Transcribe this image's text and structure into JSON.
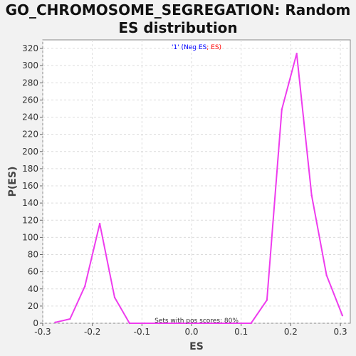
{
  "chart_data": {
    "type": "line",
    "title": "GO_CHROMOSOME_SEGREGATION: Random ES distribution",
    "xlabel": "ES",
    "ylabel": "P(ES)",
    "xlim": [
      -0.3,
      0.32
    ],
    "ylim": [
      0,
      330
    ],
    "xticks": [
      -0.3,
      -0.2,
      -0.1,
      0.0,
      0.1,
      0.2,
      0.3
    ],
    "xtick_labels": [
      "-0.3",
      "-0.2",
      "-0.1",
      "0.0",
      "0.1",
      "0.2",
      "0.3"
    ],
    "yticks": [
      0,
      20,
      40,
      60,
      80,
      100,
      120,
      140,
      160,
      180,
      200,
      220,
      240,
      260,
      280,
      300,
      320
    ],
    "grid": true,
    "legend": {
      "placement": "top-center",
      "parts": [
        {
          "text": "'1' (Neg ES",
          "color": "#0000ff"
        },
        {
          "text": "; ES)",
          "color": "#ff0000"
        }
      ]
    },
    "annotation": "Sets with pos scores: 80%",
    "series": [
      {
        "color": "#ee3cee",
        "x": [
          -0.275,
          -0.245,
          -0.215,
          -0.185,
          -0.155,
          -0.125,
          -0.095,
          -0.065,
          -0.035,
          -0.005,
          0.025,
          0.055,
          0.085,
          0.12,
          0.152,
          0.182,
          0.212,
          0.242,
          0.272,
          0.304
        ],
        "y": [
          1,
          5,
          43,
          116,
          30,
          0,
          0,
          0,
          0,
          0,
          0,
          0,
          0,
          0,
          27,
          249,
          314,
          149,
          56,
          9
        ]
      }
    ]
  }
}
